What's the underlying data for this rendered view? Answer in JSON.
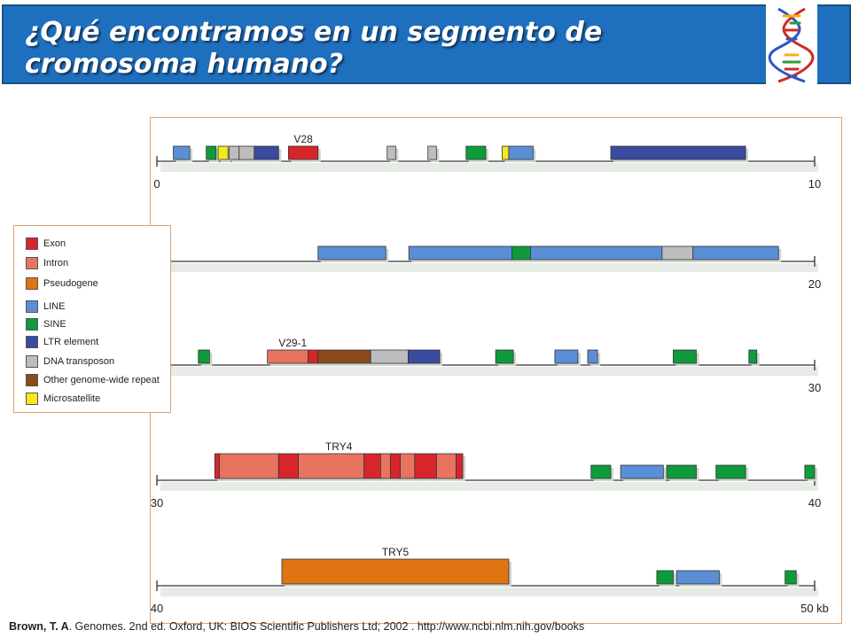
{
  "title": "¿Qué encontramos en un segmento de cromosoma humano?",
  "legend": [
    {
      "label": "Exon",
      "color": "#d6262c"
    },
    {
      "label": "Intron",
      "color": "#e8735f"
    },
    {
      "label": "Pseudogene",
      "color": "#e07412"
    },
    {
      "label": "LINE",
      "color": "#5a8fd6"
    },
    {
      "label": "SINE",
      "color": "#0f9a3c"
    },
    {
      "label": "LTR element",
      "color": "#3a4a9e"
    },
    {
      "label": "DNA transposon",
      "color": "#bdbdbd"
    },
    {
      "label": "Other genome-wide repeat",
      "color": "#8b4a1e"
    },
    {
      "label": "Microsatellite",
      "color": "#f2ea1c"
    }
  ],
  "tracks": [
    {
      "start": "0",
      "end": "10",
      "gene_label": "V28",
      "features": [
        {
          "type": "LINE",
          "s": 0.25,
          "e": 0.5
        },
        {
          "type": "SINE",
          "s": 0.75,
          "e": 0.9
        },
        {
          "type": "Microsatellite",
          "s": 0.93,
          "e": 1.08
        },
        {
          "type": "DNA transposon",
          "s": 1.1,
          "e": 1.25
        },
        {
          "type": "DNA transposon",
          "s": 1.25,
          "e": 1.48
        },
        {
          "type": "LTR element",
          "s": 1.48,
          "e": 1.85
        },
        {
          "type": "Exon",
          "s": 2.0,
          "e": 2.45
        },
        {
          "type": "DNA transposon",
          "s": 3.5,
          "e": 3.63
        },
        {
          "type": "DNA transposon",
          "s": 4.12,
          "e": 4.25
        },
        {
          "type": "SINE",
          "s": 4.7,
          "e": 5.0
        },
        {
          "type": "Microsatellite",
          "s": 5.25,
          "e": 5.35
        },
        {
          "type": "LINE",
          "s": 5.35,
          "e": 5.72
        },
        {
          "type": "LTR element",
          "s": 6.9,
          "e": 8.95
        }
      ]
    },
    {
      "start": "",
      "end": "20",
      "gene_label": "",
      "features": [
        {
          "type": "LINE",
          "s": 2.45,
          "e": 3.48
        },
        {
          "type": "LINE",
          "s": 3.83,
          "e": 5.4
        },
        {
          "type": "SINE",
          "s": 5.4,
          "e": 5.68
        },
        {
          "type": "LINE",
          "s": 5.68,
          "e": 7.68
        },
        {
          "type": "DNA transposon",
          "s": 7.68,
          "e": 8.15
        },
        {
          "type": "LINE",
          "s": 8.15,
          "e": 9.45
        }
      ]
    },
    {
      "start": "",
      "end": "30",
      "gene_label": "V29-1",
      "features": [
        {
          "type": "SINE",
          "s": 0.63,
          "e": 0.8
        },
        {
          "type": "Intron",
          "s": 1.68,
          "e": 2.3
        },
        {
          "type": "Exon",
          "s": 2.3,
          "e": 2.45
        },
        {
          "type": "Other genome-wide repeat",
          "s": 2.45,
          "e": 3.25
        },
        {
          "type": "DNA transposon",
          "s": 3.25,
          "e": 3.82
        },
        {
          "type": "LTR element",
          "s": 3.82,
          "e": 4.3
        },
        {
          "type": "SINE",
          "s": 5.15,
          "e": 5.42
        },
        {
          "type": "LINE",
          "s": 6.05,
          "e": 6.4
        },
        {
          "type": "LINE",
          "s": 6.55,
          "e": 6.7
        },
        {
          "type": "SINE",
          "s": 7.85,
          "e": 8.2
        },
        {
          "type": "SINE",
          "s": 9.0,
          "e": 9.12
        }
      ]
    },
    {
      "start": "30",
      "end": "40",
      "gene_label": "TRY4",
      "features": [
        {
          "type": "Exon",
          "s": 0.88,
          "e": 0.95
        },
        {
          "type": "Intron",
          "s": 0.95,
          "e": 1.85
        },
        {
          "type": "Exon",
          "s": 1.85,
          "e": 2.15
        },
        {
          "type": "Intron",
          "s": 2.15,
          "e": 3.15
        },
        {
          "type": "Exon",
          "s": 3.15,
          "e": 3.4
        },
        {
          "type": "Intron",
          "s": 3.4,
          "e": 3.55
        },
        {
          "type": "Exon",
          "s": 3.55,
          "e": 3.7
        },
        {
          "type": "Intron",
          "s": 3.7,
          "e": 3.92
        },
        {
          "type": "Exon",
          "s": 3.92,
          "e": 4.25
        },
        {
          "type": "Intron",
          "s": 4.25,
          "e": 4.55
        },
        {
          "type": "Exon",
          "s": 4.55,
          "e": 4.65
        },
        {
          "type": "SINE",
          "s": 6.6,
          "e": 6.9
        },
        {
          "type": "LINE",
          "s": 7.05,
          "e": 7.7
        },
        {
          "type": "SINE",
          "s": 7.75,
          "e": 8.2
        },
        {
          "type": "SINE",
          "s": 8.5,
          "e": 8.95
        },
        {
          "type": "SINE",
          "s": 9.85,
          "e": 10.0
        }
      ]
    },
    {
      "start": "40",
      "end": "50 kb",
      "gene_label": "TRY5",
      "features": [
        {
          "type": "Pseudogene",
          "s": 1.9,
          "e": 5.35
        },
        {
          "type": "SINE",
          "s": 7.6,
          "e": 7.85
        },
        {
          "type": "LINE",
          "s": 7.9,
          "e": 8.55
        },
        {
          "type": "SINE",
          "s": 9.55,
          "e": 9.72
        }
      ]
    }
  ],
  "citation": {
    "author": "Brown, T. A",
    "rest": ". Genomes. 2nd ed. Oxford, UK: BIOS Scientific Publishers Ltd; 2002 . http://www.ncbi.nlm.nih.gov/books"
  }
}
